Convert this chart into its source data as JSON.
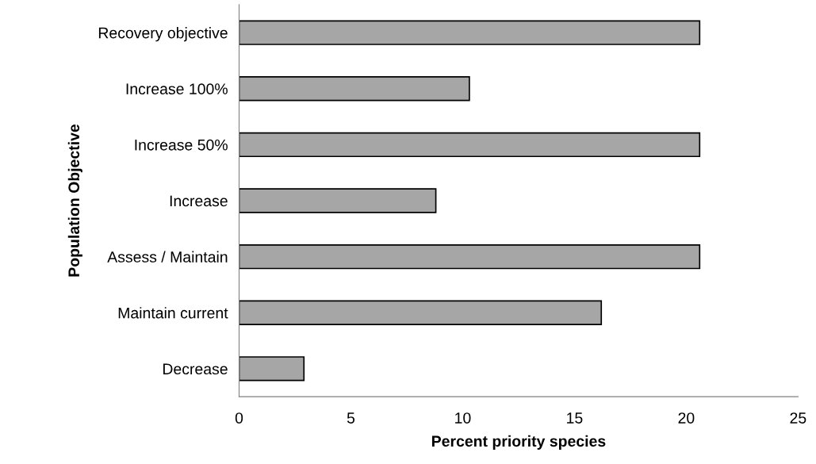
{
  "chart_data": {
    "type": "bar",
    "orientation": "horizontal",
    "xlabel": "Percent priority species",
    "ylabel": "Population Objective",
    "categories": [
      "Recovery objective",
      "Increase 100%",
      "Increase 50%",
      "Increase",
      "Assess / Maintain",
      "Maintain current",
      "Decrease"
    ],
    "values": [
      20.6,
      10.3,
      20.6,
      8.8,
      20.6,
      16.2,
      2.9
    ],
    "color": "#a6a6a6",
    "xlim": [
      0,
      25
    ],
    "xticks": [
      0,
      5,
      10,
      15,
      20,
      25
    ],
    "grid": false,
    "legend": false
  }
}
